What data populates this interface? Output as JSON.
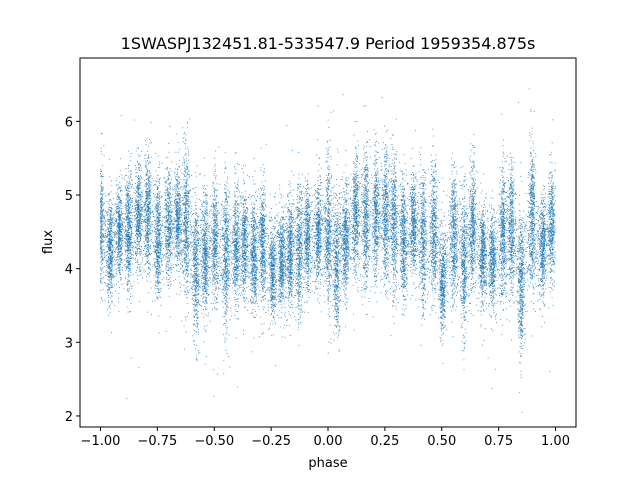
{
  "chart_data": {
    "type": "scatter",
    "title": "1SWASPJ132451.81-533547.9 Period 1959354.875s",
    "xlabel": "phase",
    "ylabel": "flux",
    "xlim": [
      -1.09,
      1.09
    ],
    "ylim": [
      1.85,
      6.86
    ],
    "x_ticks": [
      -1.0,
      -0.75,
      -0.5,
      -0.25,
      0.0,
      0.25,
      0.5,
      0.75,
      1.0
    ],
    "x_tick_labels": [
      "−1.00",
      "−0.75",
      "−0.50",
      "−0.25",
      "0.00",
      "0.25",
      "0.50",
      "0.75",
      "1.00"
    ],
    "y_ticks": [
      2,
      3,
      4,
      5,
      6
    ],
    "y_tick_labels": [
      "2",
      "3",
      "4",
      "5",
      "6"
    ],
    "grid": false,
    "legend": "none",
    "point_color": "#1f77b4",
    "phase_range": [
      -1.0,
      1.0
    ],
    "baseline_flux": 4.4,
    "flux_bounds": [
      2.0,
      6.6
    ],
    "n_points": 26000,
    "mean_flux_profile": [
      {
        "phase": -1.0,
        "flux": 4.4
      },
      {
        "phase": -0.75,
        "flux": 4.55
      },
      {
        "phase": -0.5,
        "flux": 4.3
      },
      {
        "phase": -0.25,
        "flux": 4.15
      },
      {
        "phase": 0.0,
        "flux": 4.45
      },
      {
        "phase": 0.25,
        "flux": 4.55
      },
      {
        "phase": 0.5,
        "flux": 4.3
      },
      {
        "phase": 0.75,
        "flux": 4.15
      },
      {
        "phase": 1.0,
        "flux": 4.4
      }
    ]
  }
}
